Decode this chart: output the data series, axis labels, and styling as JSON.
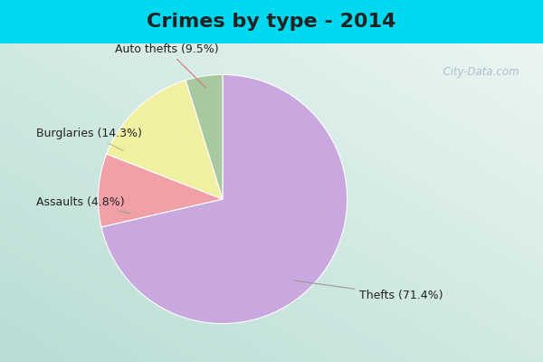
{
  "title": "Crimes by type - 2014",
  "slices": [
    {
      "label": "Thefts (71.4%)",
      "value": 71.4,
      "color": "#c9a8e0"
    },
    {
      "label": "Auto thefts (9.5%)",
      "value": 9.5,
      "color": "#f2a0a8"
    },
    {
      "label": "Burglaries (14.3%)",
      "value": 14.3,
      "color": "#f0f0a0"
    },
    {
      "label": "Assaults (4.8%)",
      "value": 4.8,
      "color": "#a8c8a0"
    }
  ],
  "background_cyan": "#00d8f0",
  "background_main_tl": "#b8ddd4",
  "background_main_br": "#e8f0ee",
  "title_fontsize": 16,
  "label_fontsize": 9,
  "watermark": "  City-Data.com",
  "title_color": "#222222"
}
